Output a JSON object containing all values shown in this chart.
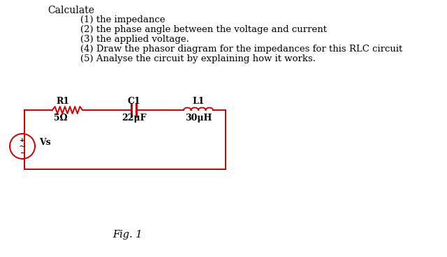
{
  "bg_color": "#ffffff",
  "text_color": "#000000",
  "circuit_color": "#cc0000",
  "title_text": "Calculate",
  "items": [
    "(1) the impedance",
    "(2) the phase angle between the voltage and current",
    "(3) the applied voltage.",
    "(4) Draw the phasor diagram for the impedances for this RLC circuit",
    "(5) Analyse the circuit by explaining how it works."
  ],
  "fig_label": "Fig. 1",
  "R_label": "R1",
  "R_value": "5Ω",
  "C_label": "C1",
  "C_value": "22μF",
  "L_label": "L1",
  "L_value": "30μH",
  "Vs_label": "Vs",
  "font_family": "DejaVu Serif",
  "title_fontsize": 10,
  "item_fontsize": 9.5,
  "label_fontsize": 9,
  "circuit_lw": 1.4
}
